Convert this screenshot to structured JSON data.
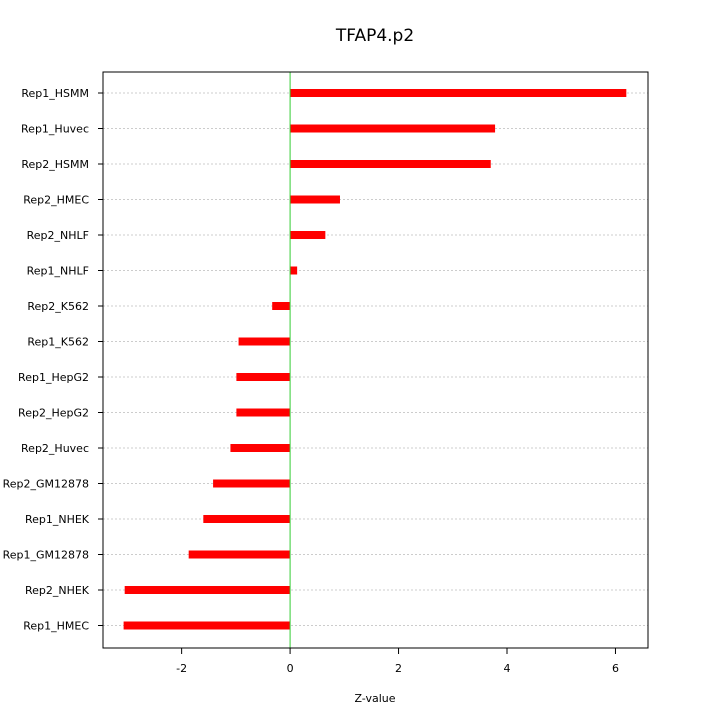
{
  "chart_data": {
    "type": "bar",
    "orientation": "horizontal",
    "title": "TFAP4.p2",
    "xlabel": "Z-value",
    "ylabel": "",
    "xlim": [
      -3.45,
      6.6
    ],
    "xticks": [
      -2,
      0,
      2,
      4,
      6
    ],
    "xtick_labels": [
      "-2",
      "0",
      "2",
      "4",
      "6"
    ],
    "grid": true,
    "reference_line_x": 0,
    "bar_color": "#ff0000",
    "reference_line_color": "#33cc33",
    "grid_color": "#cccccc",
    "categories": [
      "Rep1_HSMM",
      "Rep1_Huvec",
      "Rep2_HSMM",
      "Rep2_HMEC",
      "Rep2_NHLF",
      "Rep1_NHLF",
      "Rep2_K562",
      "Rep1_K562",
      "Rep1_HepG2",
      "Rep2_HepG2",
      "Rep2_Huvec",
      "Rep2_GM12878",
      "Rep1_NHEK",
      "Rep1_GM12878",
      "Rep2_NHEK",
      "Rep1_HMEC"
    ],
    "values": [
      6.2,
      3.78,
      3.7,
      0.92,
      0.65,
      0.13,
      -0.33,
      -0.95,
      -0.99,
      -0.99,
      -1.1,
      -1.42,
      -1.6,
      -1.87,
      -3.05,
      -3.07
    ]
  }
}
